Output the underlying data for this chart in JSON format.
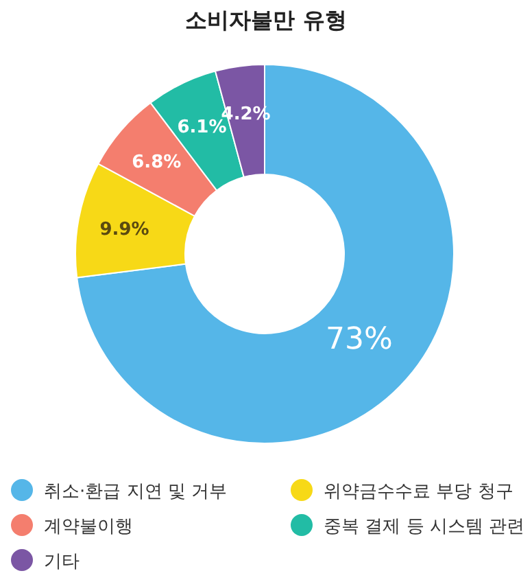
{
  "chart_data": {
    "type": "donut",
    "title": "소비자불만 유형",
    "categories": [
      "취소·환급 지연 및 거부",
      "위약금수수료 부당 청구",
      "계약불이행",
      "중복 결제 등 시스템 관련",
      "기타"
    ],
    "values": [
      73,
      9.9,
      6.8,
      6.1,
      4.2
    ],
    "colors": [
      "#55b6e8",
      "#f7d917",
      "#f47e6e",
      "#22bca5",
      "#7b56a4"
    ],
    "value_labels": [
      "73%",
      "9.9%",
      "6.8%",
      "6.1%",
      "4.2%"
    ],
    "legend": "bottom"
  }
}
